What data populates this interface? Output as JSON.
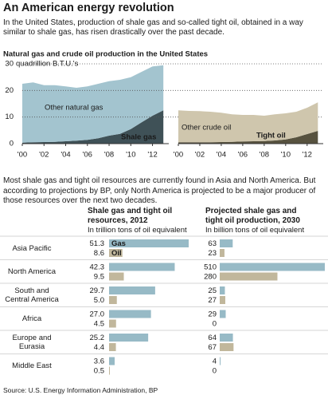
{
  "title": "An American energy revolution",
  "intro": "In the United States, production of shale gas and so-called tight oil, obtained in a way similar to shale gas, has risen drastically over the past decade.",
  "note": "Most shale gas and tight oil resources are currently found in Asia and North America. But according to projections by BP, only North America is projected to be a major producer of those resources over the next two decades.",
  "source": "Source: U.S. Energy Information Administration, BP",
  "chart_data": [
    {
      "type": "area",
      "title": "Natural gas and crude oil production in the United States",
      "ylabel": "quadrillion B.T.U.'s",
      "x": [
        2000,
        2001,
        2002,
        2003,
        2004,
        2005,
        2006,
        2007,
        2008,
        2009,
        2010,
        2011,
        2012,
        2013
      ],
      "xlim": [
        2000,
        2013.5
      ],
      "xticks": [
        {
          "value": 2000,
          "label": "'00"
        },
        {
          "value": 2002,
          "label": "'02"
        },
        {
          "value": 2004,
          "label": "'04"
        },
        {
          "value": 2006,
          "label": "'06"
        },
        {
          "value": 2008,
          "label": "'08"
        },
        {
          "value": 2010,
          "label": "'10"
        },
        {
          "value": 2012,
          "label": "'12"
        }
      ],
      "ylim": [
        0,
        30
      ],
      "yticks": [
        0,
        10,
        20,
        30
      ],
      "grid": true,
      "series": [
        {
          "name": "Shale gas",
          "color": "#3f5157",
          "values": [
            0.4,
            0.5,
            0.6,
            0.7,
            0.9,
            1.1,
            1.4,
            2,
            3,
            3.7,
            5.5,
            8,
            10.5,
            12.5
          ]
        },
        {
          "name": "Other natural gas",
          "color": "#a3c4cf",
          "values": [
            22.1,
            22.5,
            21.4,
            21.3,
            20.6,
            19.9,
            20.1,
            20.5,
            20.5,
            20.3,
            19.5,
            19,
            18.5,
            17
          ]
        }
      ]
    },
    {
      "type": "area",
      "x": [
        2000,
        2001,
        2002,
        2003,
        2004,
        2005,
        2006,
        2007,
        2008,
        2009,
        2010,
        2011,
        2012,
        2013
      ],
      "xlim": [
        2000,
        2013.5
      ],
      "xticks": [
        {
          "value": 2000,
          "label": "'00"
        },
        {
          "value": 2002,
          "label": "'02"
        },
        {
          "value": 2004,
          "label": "'04"
        },
        {
          "value": 2006,
          "label": "'06"
        },
        {
          "value": 2008,
          "label": "'08"
        },
        {
          "value": 2010,
          "label": "'10"
        },
        {
          "value": 2012,
          "label": "'12"
        }
      ],
      "ylim": [
        0,
        30
      ],
      "series": [
        {
          "name": "Tight oil",
          "color": "#57523f",
          "values": [
            0.5,
            0.5,
            0.5,
            0.5,
            0.6,
            0.7,
            0.8,
            0.9,
            1.0,
            1.2,
            1.6,
            2.4,
            3.6,
            4.8
          ]
        },
        {
          "name": "Other crude oil",
          "color": "#cfc6ad",
          "values": [
            12,
            11.8,
            11.7,
            11.5,
            11,
            10.3,
            10,
            9.9,
            9.5,
            9.8,
            9.8,
            9.6,
            9.9,
            10.7
          ]
        }
      ]
    },
    {
      "type": "hbar",
      "title": "Shale gas and tight oil resources, 2012",
      "subtitle": "In trillion tons of oil equivalent",
      "categories": [
        "Asia Pacific",
        "North America",
        "South and Central America",
        "Africa",
        "Europe and Eurasia",
        "Middle East"
      ],
      "series": [
        {
          "name": "Gas",
          "color": "#97bac6",
          "values": [
            51.3,
            42.3,
            29.7,
            27.0,
            25.2,
            3.6
          ],
          "value_labels": [
            "51.3",
            "42.3",
            "29.7",
            "27.0",
            "25.2",
            "3.6"
          ]
        },
        {
          "name": "Oil",
          "color": "#c1b79c",
          "values": [
            8.6,
            9.5,
            5.0,
            4.5,
            4.4,
            0.5
          ],
          "value_labels": [
            "8.6",
            "9.5",
            "5.0",
            "4.5",
            "4.4",
            "0.5"
          ]
        }
      ]
    },
    {
      "type": "hbar",
      "title": "Projected shale gas and tight oil production, 2030",
      "subtitle": "In billion tons of oil equivalent",
      "series": [
        {
          "color": "#97bac6",
          "values": [
            63,
            510,
            25,
            29,
            64,
            4
          ]
        },
        {
          "color": "#c1b79c",
          "values": [
            23,
            280,
            27,
            0,
            67,
            0
          ]
        }
      ]
    }
  ]
}
